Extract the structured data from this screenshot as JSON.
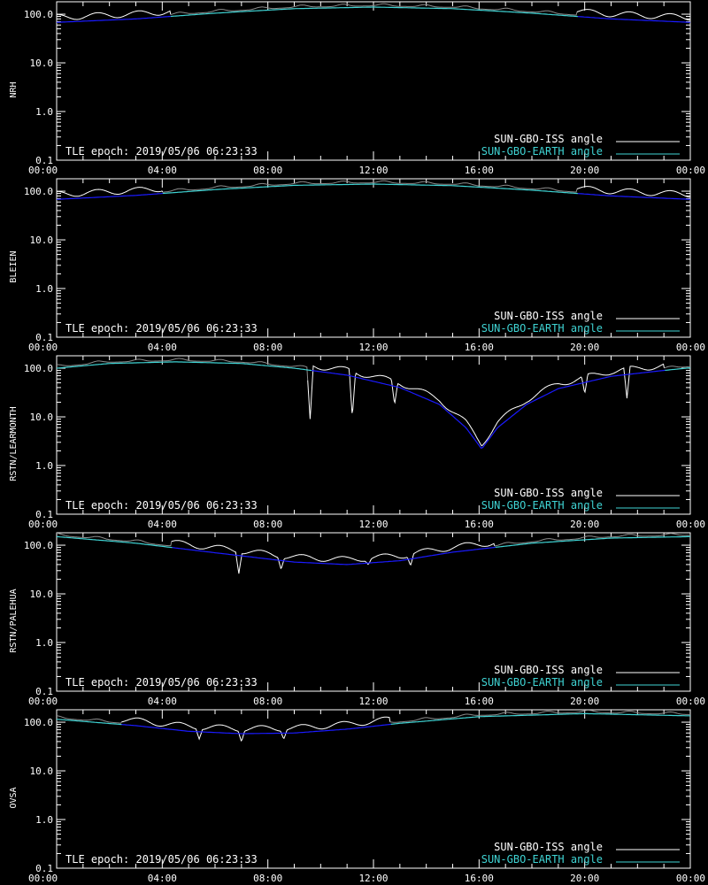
{
  "figure": {
    "background": "#000000",
    "axis_color": "#ffffff",
    "iss_color": "#ffffff",
    "iss_faded_color": "#8c8c8c",
    "earth_color": "#3fd3d3",
    "earth_lower_color": "#1a1aff"
  },
  "chart_data": [
    {
      "type": "line",
      "ylabel": "NRH",
      "x_tick_labels": [
        "00:00",
        "04:00",
        "08:00",
        "12:00",
        "16:00",
        "20:00",
        "00:00"
      ],
      "xlim_hours": [
        0,
        24
      ],
      "y_scale": "log",
      "ylim": [
        0.1,
        180
      ],
      "y_tick_labels": [
        "100.0",
        "10.0",
        "1.0",
        "0.1"
      ],
      "y_ticks": [
        100,
        10,
        1,
        0.1
      ],
      "annotation": "TLE epoch: 2019/05/06 06:23:33",
      "legend": [
        "SUN-GBO-ISS angle",
        "SUN-GBO-EARTH angle"
      ],
      "legend_position": "lower-right",
      "earth_angle": {
        "x_hours": [
          0,
          3,
          6,
          9,
          12,
          15,
          18,
          21,
          24
        ],
        "values": [
          68,
          80,
          105,
          130,
          140,
          130,
          105,
          80,
          68
        ]
      },
      "iss_dips": []
    },
    {
      "type": "line",
      "ylabel": "BLEIEN",
      "x_tick_labels": [
        "00:00",
        "04:00",
        "08:00",
        "12:00",
        "16:00",
        "20:00",
        "00:00"
      ],
      "xlim_hours": [
        0,
        24
      ],
      "y_scale": "log",
      "ylim": [
        0.1,
        180
      ],
      "y_tick_labels": [
        "100.0",
        "10.0",
        "1.0",
        "0.1"
      ],
      "y_ticks": [
        100,
        10,
        1,
        0.1
      ],
      "annotation": "TLE epoch: 2019/05/06 06:23:33",
      "legend": [
        "SUN-GBO-ISS angle",
        "SUN-GBO-EARTH angle"
      ],
      "legend_position": "lower-right",
      "earth_angle": {
        "x_hours": [
          0,
          3,
          6,
          9,
          12,
          15,
          18,
          21,
          24
        ],
        "values": [
          68,
          82,
          108,
          132,
          140,
          130,
          105,
          80,
          68
        ]
      },
      "iss_dips": []
    },
    {
      "type": "line",
      "ylabel": "RSTN/LEARMONTH",
      "x_tick_labels": [
        "00:00",
        "04:00",
        "08:00",
        "12:00",
        "16:00",
        "20:00",
        "00:00"
      ],
      "xlim_hours": [
        0,
        24
      ],
      "y_scale": "log",
      "ylim": [
        0.1,
        180
      ],
      "y_tick_labels": [
        "100.0",
        "10.0",
        "1.0",
        "0.1"
      ],
      "y_ticks": [
        100,
        10,
        1,
        0.1
      ],
      "annotation": "TLE epoch: 2019/05/06 06:23:33",
      "legend": [
        "SUN-GBO-ISS angle",
        "SUN-GBO-EARTH angle"
      ],
      "legend_position": "lower-right",
      "earth_angle": {
        "x_hours": [
          0,
          2,
          4.5,
          7,
          9,
          11,
          13,
          14.5,
          15.5,
          16.1,
          16.7,
          17.8,
          19,
          21,
          23,
          24
        ],
        "values": [
          100,
          125,
          135,
          125,
          100,
          72,
          40,
          18,
          6,
          2.2,
          6,
          18,
          38,
          68,
          90,
          102
        ]
      },
      "iss_dips": [
        {
          "x_hours": 9.6,
          "value": 9
        },
        {
          "x_hours": 11.2,
          "value": 10
        },
        {
          "x_hours": 12.8,
          "value": 18
        },
        {
          "x_hours": 20,
          "value": 30
        },
        {
          "x_hours": 21.6,
          "value": 24
        }
      ]
    },
    {
      "type": "line",
      "ylabel": "RSTN/PALEHUA",
      "x_tick_labels": [
        "00:00",
        "04:00",
        "08:00",
        "12:00",
        "16:00",
        "20:00",
        "00:00"
      ],
      "xlim_hours": [
        0,
        24
      ],
      "y_scale": "log",
      "ylim": [
        0.1,
        180
      ],
      "y_tick_labels": [
        "100.0",
        "10.0",
        "1.0",
        "0.1"
      ],
      "y_ticks": [
        100,
        10,
        1,
        0.1
      ],
      "annotation": "TLE epoch: 2019/05/06 06:23:33",
      "legend": [
        "SUN-GBO-ISS angle",
        "SUN-GBO-EARTH angle"
      ],
      "legend_position": "lower-right",
      "earth_angle": {
        "x_hours": [
          0,
          3,
          6,
          9,
          11,
          13,
          15,
          18,
          21,
          24
        ],
        "values": [
          150,
          110,
          70,
          45,
          40,
          48,
          72,
          110,
          140,
          150
        ]
      },
      "iss_dips": [
        {
          "x_hours": 6.9,
          "value": 26
        },
        {
          "x_hours": 8.5,
          "value": 32
        },
        {
          "x_hours": 11.8,
          "value": 40
        },
        {
          "x_hours": 13.4,
          "value": 38
        }
      ]
    },
    {
      "type": "line",
      "ylabel": "OVSA",
      "x_tick_labels": [
        "00:00",
        "04:00",
        "08:00",
        "12:00",
        "16:00",
        "20:00",
        "00:00"
      ],
      "xlim_hours": [
        0,
        24
      ],
      "y_scale": "log",
      "ylim": [
        0.1,
        180
      ],
      "y_tick_labels": [
        "100.0",
        "10.0",
        "1.0",
        "0.1"
      ],
      "y_ticks": [
        100,
        10,
        1,
        0.1
      ],
      "annotation": "TLE epoch: 2019/05/06 06:23:33",
      "legend": [
        "SUN-GBO-ISS angle",
        "SUN-GBO-EARTH angle"
      ],
      "legend_position": "lower-right",
      "earth_angle": {
        "x_hours": [
          0,
          3,
          5,
          7,
          9,
          11,
          13,
          16,
          20,
          24
        ],
        "values": [
          115,
          85,
          65,
          58,
          60,
          72,
          95,
          130,
          150,
          135
        ]
      },
      "iss_dips": [
        {
          "x_hours": 5.4,
          "value": 45
        },
        {
          "x_hours": 7,
          "value": 40
        },
        {
          "x_hours": 8.6,
          "value": 45
        }
      ]
    }
  ]
}
